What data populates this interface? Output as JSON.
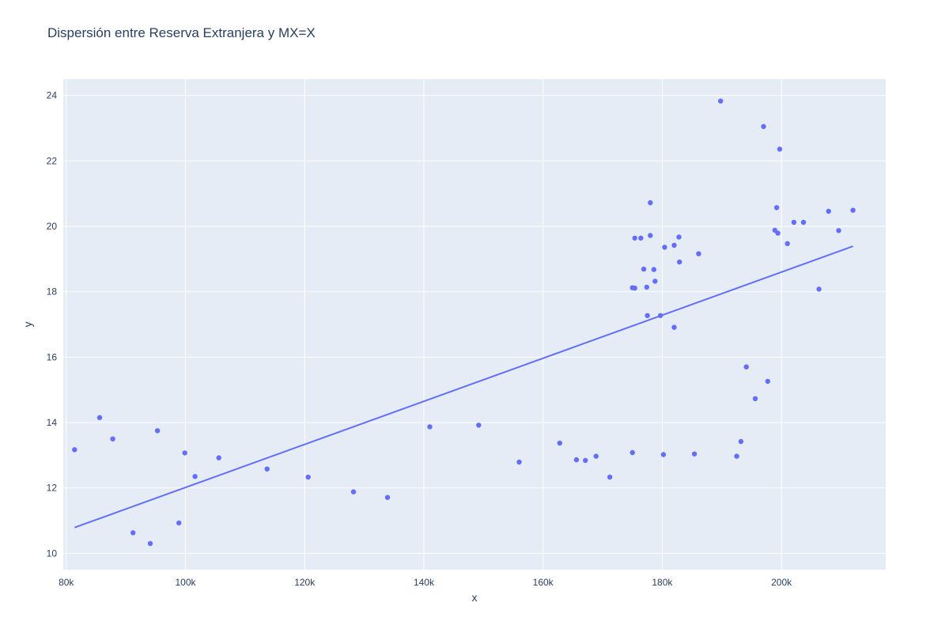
{
  "chart_data": {
    "type": "scatter",
    "title": "Dispersión entre Reserva Extranjera y MX=X",
    "xlabel": "x",
    "ylabel": "y",
    "xlim": [
      79500,
      217500
    ],
    "ylim": [
      9.5,
      24.5
    ],
    "x_ticks": [
      80000,
      100000,
      120000,
      140000,
      160000,
      180000,
      200000
    ],
    "x_tick_labels": [
      "80k",
      "100k",
      "120k",
      "140k",
      "160k",
      "180k",
      "200k"
    ],
    "y_ticks": [
      10,
      12,
      14,
      16,
      18,
      20,
      22,
      24
    ],
    "y_tick_labels": [
      "10",
      "12",
      "14",
      "16",
      "18",
      "20",
      "22",
      "24"
    ],
    "grid": true,
    "colors": {
      "marker": "#636efa",
      "line": "#636efa",
      "plot_bg": "#e5ecf6",
      "grid": "#ffffff",
      "text": "#2a3f5f"
    },
    "series": [
      {
        "mode": "markers",
        "points": [
          [
            81400,
            13.17
          ],
          [
            85600,
            14.15
          ],
          [
            87800,
            13.5
          ],
          [
            91200,
            10.63
          ],
          [
            94100,
            10.3
          ],
          [
            95300,
            13.75
          ],
          [
            98900,
            10.93
          ],
          [
            99900,
            13.07
          ],
          [
            101600,
            12.35
          ],
          [
            105600,
            12.92
          ],
          [
            113700,
            12.58
          ],
          [
            120600,
            12.33
          ],
          [
            128200,
            11.88
          ],
          [
            133900,
            11.71
          ],
          [
            141000,
            13.87
          ],
          [
            149200,
            13.92
          ],
          [
            156000,
            12.79
          ],
          [
            162800,
            13.37
          ],
          [
            165600,
            12.86
          ],
          [
            167100,
            12.84
          ],
          [
            168900,
            12.97
          ],
          [
            171200,
            12.33
          ],
          [
            175000,
            13.08
          ],
          [
            175000,
            18.12
          ],
          [
            175400,
            18.11
          ],
          [
            175400,
            19.64
          ],
          [
            176400,
            19.64
          ],
          [
            176900,
            18.69
          ],
          [
            177400,
            18.14
          ],
          [
            177500,
            17.27
          ],
          [
            178000,
            20.72
          ],
          [
            178000,
            19.72
          ],
          [
            178600,
            18.68
          ],
          [
            178800,
            18.32
          ],
          [
            179700,
            17.27
          ],
          [
            180200,
            13.02
          ],
          [
            180400,
            19.36
          ],
          [
            182000,
            19.42
          ],
          [
            182000,
            16.91
          ],
          [
            182800,
            19.67
          ],
          [
            182900,
            18.91
          ],
          [
            185400,
            13.04
          ],
          [
            186100,
            19.16
          ],
          [
            189800,
            23.83
          ],
          [
            192500,
            12.97
          ],
          [
            193200,
            13.42
          ],
          [
            194100,
            15.7
          ],
          [
            195600,
            14.73
          ],
          [
            197000,
            23.05
          ],
          [
            197700,
            15.26
          ],
          [
            198900,
            19.88
          ],
          [
            199200,
            20.57
          ],
          [
            199400,
            19.79
          ],
          [
            199700,
            22.36
          ],
          [
            201000,
            19.47
          ],
          [
            202100,
            20.12
          ],
          [
            203700,
            20.12
          ],
          [
            206300,
            18.08
          ],
          [
            207900,
            20.46
          ],
          [
            209600,
            19.87
          ],
          [
            212000,
            20.49
          ]
        ]
      },
      {
        "mode": "lines",
        "points": [
          [
            81400,
            10.79
          ],
          [
            212000,
            19.39
          ]
        ]
      }
    ]
  }
}
